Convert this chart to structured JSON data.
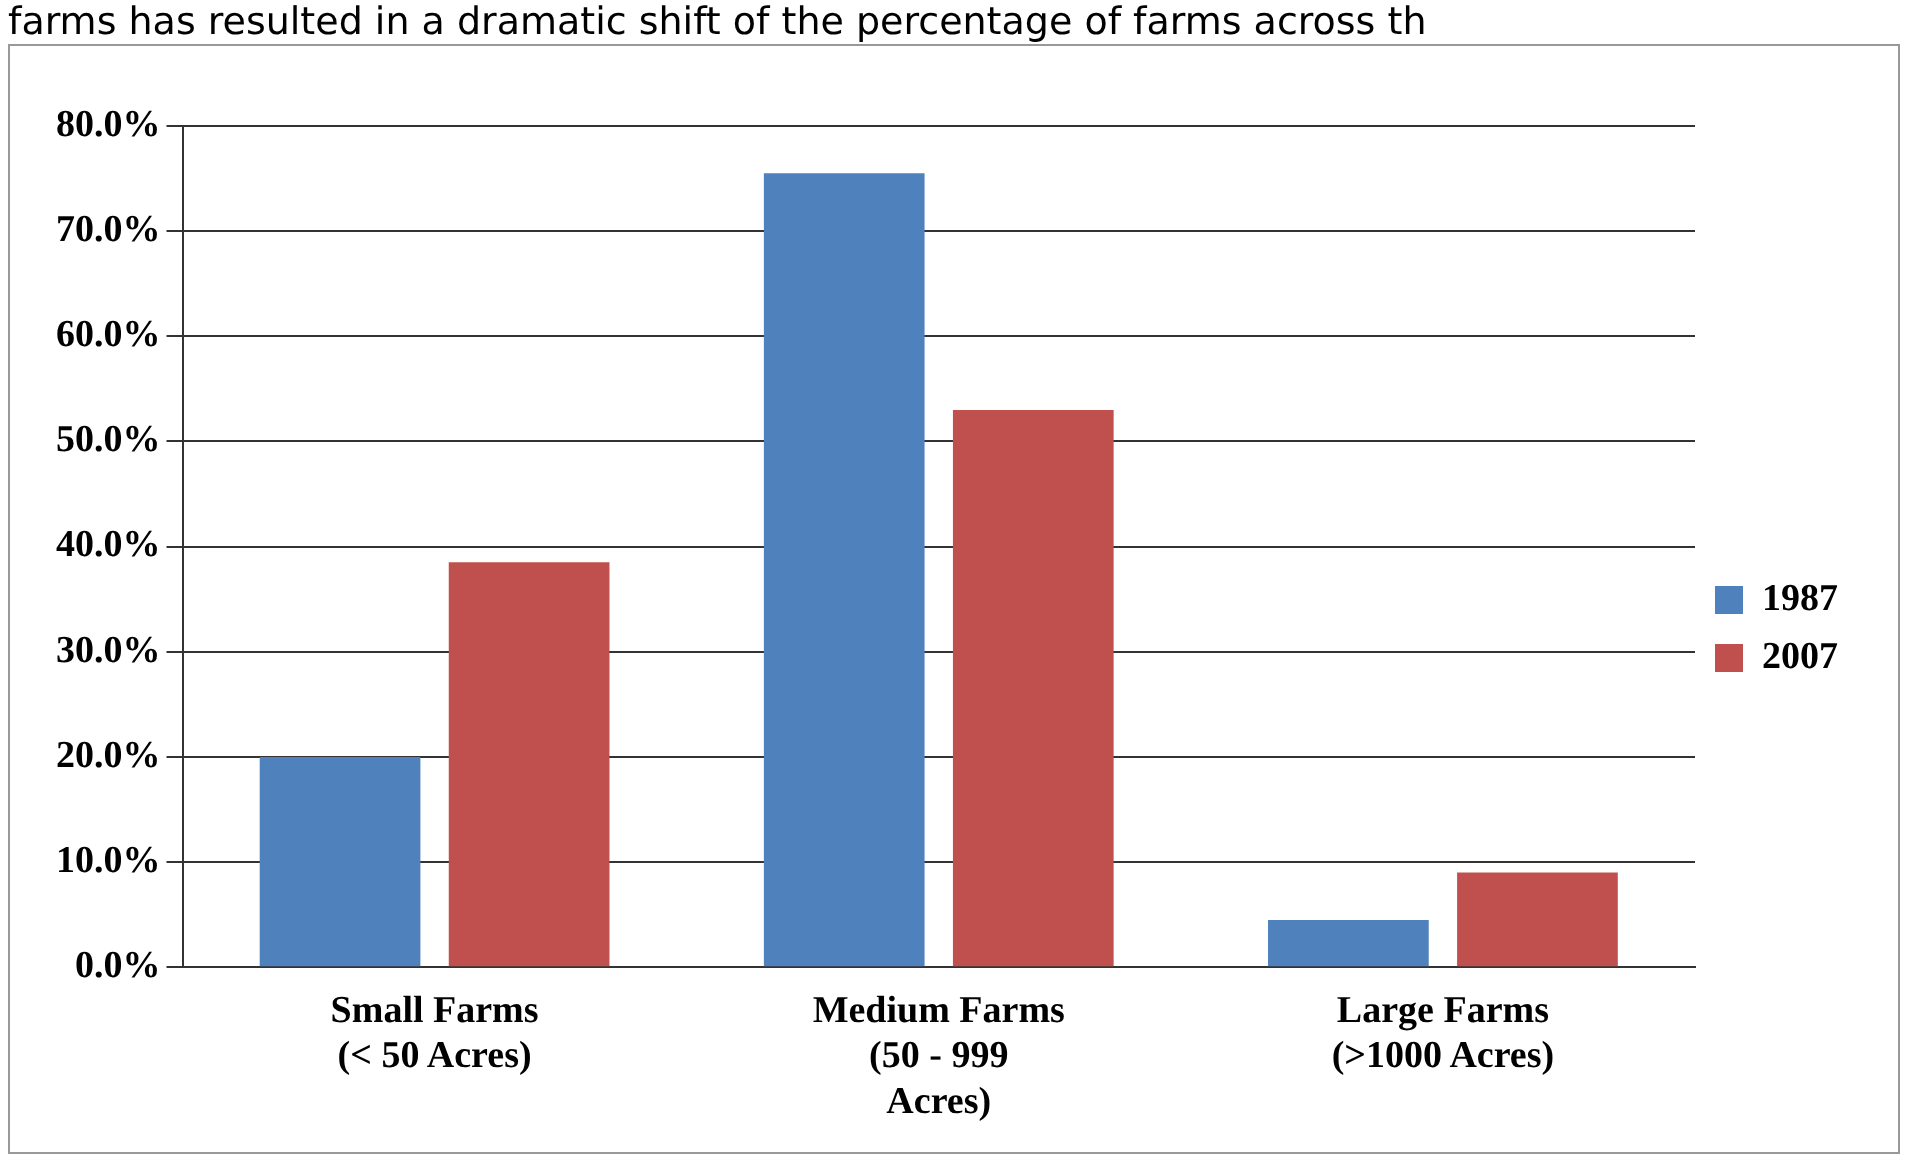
{
  "chart_data": {
    "type": "bar",
    "categories": [
      "Small Farms\n(< 50 Acres)",
      "Medium Farms\n(50 - 999\nAcres)",
      "Large Farms\n(>1000 Acres)"
    ],
    "series": [
      {
        "name": "1987",
        "color": "#4f81bd",
        "values": [
          20,
          75.5,
          4.5
        ]
      },
      {
        "name": "2007",
        "color": "#c0504d",
        "values": [
          38.5,
          53,
          9
        ]
      }
    ],
    "ylim": [
      0,
      80
    ],
    "yticks": [
      {
        "value": 0,
        "label": "0.0%"
      },
      {
        "value": 10,
        "label": "10.0%"
      },
      {
        "value": 20,
        "label": "20.0%"
      },
      {
        "value": 30,
        "label": "30.0%"
      },
      {
        "value": 40,
        "label": "40.0%"
      },
      {
        "value": 50,
        "label": "50.0%"
      },
      {
        "value": 60,
        "label": "60.0%"
      },
      {
        "value": 70,
        "label": "70.0%"
      },
      {
        "value": 80,
        "label": "80.0%"
      }
    ],
    "grid": "y",
    "legend": "right",
    "annotations": [
      "farms has resulted in a dramatic shift of the percentage of farms across th"
    ]
  }
}
